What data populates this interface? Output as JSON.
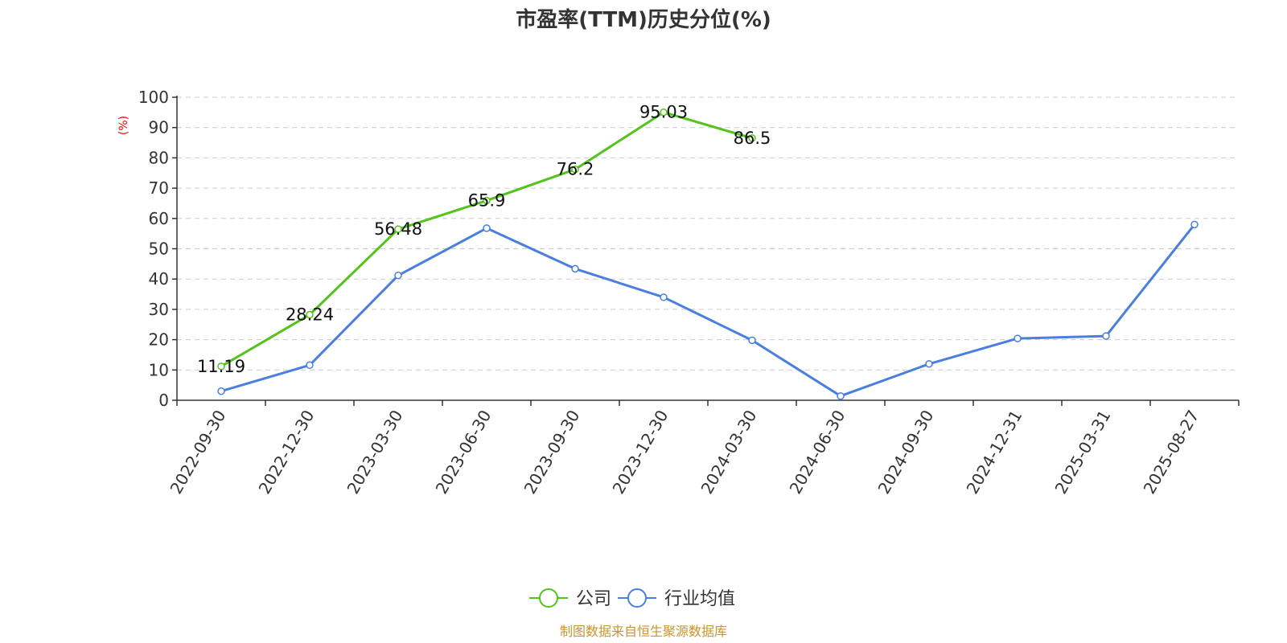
{
  "chart_data": {
    "type": "line",
    "title": "市盈率(TTM)历史分位(%)",
    "ylabel": "(%)",
    "ylim": [
      0,
      100
    ],
    "yticks": [
      "0",
      "10",
      "20",
      "30",
      "40",
      "50",
      "60",
      "70",
      "80",
      "90",
      "100"
    ],
    "categories": [
      "2022-09-30",
      "2022-12-30",
      "2023-03-30",
      "2023-06-30",
      "2023-09-30",
      "2023-12-30",
      "2024-03-30",
      "2024-06-30",
      "2024-09-30",
      "2024-12-31",
      "2025-03-31",
      "2025-08-27"
    ],
    "grid": true,
    "legend_position": "bottom",
    "series": [
      {
        "name": "公司",
        "color": "#52c41a",
        "values": [
          11.19,
          28.24,
          56.48,
          65.9,
          76.2,
          95.03,
          86.5,
          null,
          null,
          null,
          null,
          null
        ],
        "labels": [
          "11.19",
          "28.24",
          "56.48",
          "65.9",
          "76.2",
          "95.03",
          "86.5",
          null,
          null,
          null,
          null,
          null
        ]
      },
      {
        "name": "行业均值",
        "color": "#4a7fe0",
        "values": [
          3.0,
          11.6,
          41.2,
          56.8,
          43.4,
          34.0,
          19.8,
          1.4,
          12.0,
          20.4,
          21.2,
          58.0
        ]
      }
    ]
  },
  "source_note": "制图数据来自恒生聚源数据库",
  "colors": {
    "unit_label": "#ff0000",
    "source_note": "#c8952a",
    "grid": "#cccccc",
    "axis": "#333333"
  }
}
